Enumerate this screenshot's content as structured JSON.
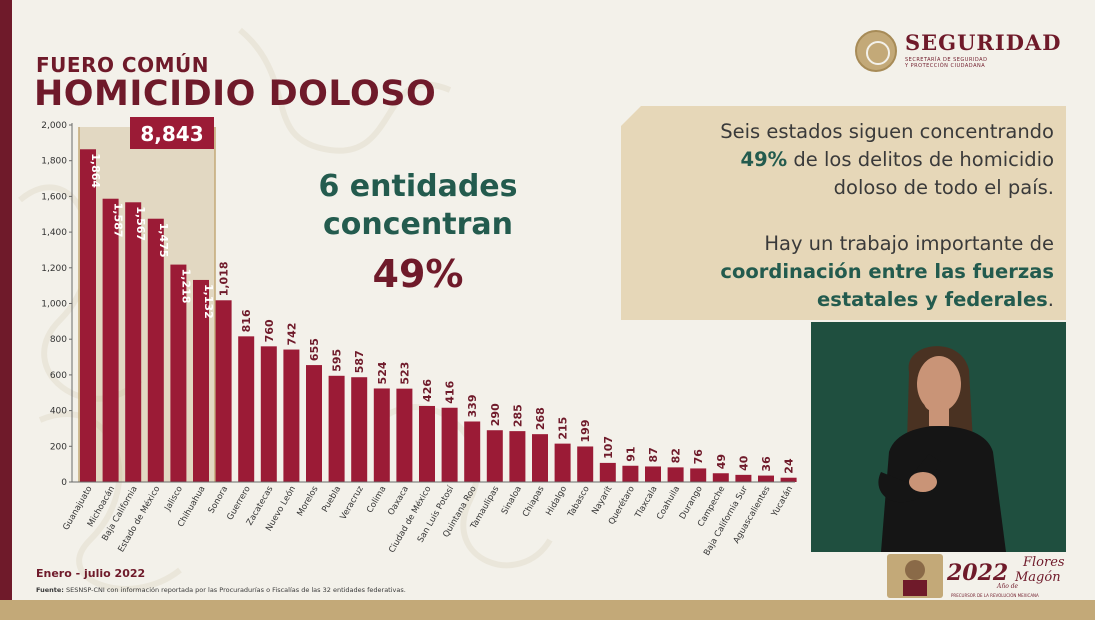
{
  "header": {
    "subtitle": "FUERO COMÚN",
    "title": "HOMICIDIO DOLOSO"
  },
  "logo": {
    "name": "SEGURIDAD",
    "sub_line1": "SECRETARÍA DE SEGURIDAD",
    "sub_line2": "Y PROTECCIÓN CIUDADANA"
  },
  "highlight": {
    "total_label": "8,843",
    "line1": "6 entidades",
    "line2": "concentran",
    "percent": "49%"
  },
  "info": {
    "p1_a": "Seis estados siguen concentrando",
    "p1_b_bold": "49%",
    "p1_b_rest": " de los delitos de homicidio",
    "p1_c": "doloso de todo el país.",
    "p2_a": "Hay un trabajo importante de",
    "p2_b_bold": "coordinación entre las fuerzas",
    "p2_c_bold": "estatales y federales",
    "p2_c_end": "."
  },
  "footer": {
    "period": "Enero - julio 2022",
    "source_label": "Fuente:",
    "source_text": " SESNSP-CNI con información reportada por las Procuradurías o Fiscalías de las 32 entidades federativas."
  },
  "badge": {
    "year": "2022",
    "name_line": "Flores",
    "name_line2": "Magón",
    "small": "Año de",
    "caption": "PRECURSOR DE LA REVOLUCIÓN MEXICANA"
  },
  "colors": {
    "bar": "#9b1b36",
    "bar_dark": "#6f1a2a",
    "highlight_box": "#c3a978",
    "green": "#235b4e",
    "gold": "#e6d7b8"
  },
  "chart_data": {
    "type": "bar",
    "categories": [
      "Guanajuato",
      "Michoacán",
      "Baja California",
      "Estado de México",
      "Jalisco",
      "Chihuahua",
      "Sonora",
      "Guerrero",
      "Zacatecas",
      "Nuevo León",
      "Morelos",
      "Puebla",
      "Veracruz",
      "Colima",
      "Oaxaca",
      "Ciudad de México",
      "San Luis Potosí",
      "Quintana Roo",
      "Tamaulipas",
      "Sinaloa",
      "Chiapas",
      "Hidalgo",
      "Tabasco",
      "Nayarit",
      "Querétaro",
      "Tlaxcala",
      "Coahuila",
      "Durango",
      "Campeche",
      "Baja California Sur",
      "Aguascalientes",
      "Yucatán"
    ],
    "values": [
      1864,
      1587,
      1567,
      1475,
      1218,
      1132,
      1018,
      816,
      760,
      742,
      655,
      595,
      587,
      524,
      523,
      426,
      416,
      339,
      290,
      285,
      268,
      215,
      199,
      107,
      91,
      87,
      82,
      76,
      49,
      40,
      36,
      24
    ],
    "value_labels": [
      "1,864",
      "1,587",
      "1,567",
      "1,475",
      "1,218",
      "1,132",
      "1,018",
      "816",
      "760",
      "742",
      "655",
      "595",
      "587",
      "524",
      "523",
      "426",
      "416",
      "339",
      "290",
      "285",
      "268",
      "215",
      "199",
      "107",
      "91",
      "87",
      "82",
      "76",
      "49",
      "40",
      "36",
      "24"
    ],
    "highlighted_count": 6,
    "yticks": [
      "0",
      "200",
      "400",
      "600",
      "800",
      "1,000",
      "1,200",
      "1,400",
      "1,600",
      "1,800",
      "2,000"
    ],
    "ylim": [
      0,
      2000
    ],
    "grid": false
  }
}
